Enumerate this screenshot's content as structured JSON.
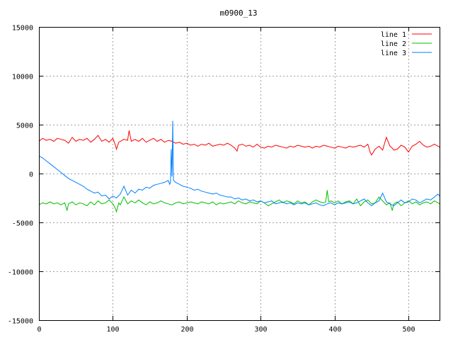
{
  "chart_data": {
    "type": "line",
    "title": "m0900_13",
    "xlabel": "",
    "ylabel": "",
    "xlim": [
      0,
      542
    ],
    "ylim": [
      -15000,
      15000
    ],
    "x_ticks": [
      0,
      100,
      200,
      300,
      400,
      500
    ],
    "y_ticks": [
      -15000,
      -10000,
      -5000,
      0,
      5000,
      10000,
      15000
    ],
    "grid": true,
    "legend_position": "top-right",
    "series": [
      {
        "name": "line 1",
        "color": "#ff0000",
        "x": [
          0,
          5,
          10,
          15,
          20,
          25,
          30,
          35,
          40,
          45,
          50,
          55,
          60,
          65,
          70,
          75,
          80,
          85,
          90,
          95,
          100,
          103,
          105,
          108,
          110,
          115,
          120,
          122,
          125,
          130,
          135,
          140,
          145,
          150,
          155,
          160,
          165,
          170,
          175,
          180,
          185,
          190,
          195,
          200,
          205,
          210,
          215,
          220,
          225,
          230,
          235,
          240,
          245,
          250,
          255,
          260,
          265,
          268,
          270,
          275,
          280,
          285,
          290,
          295,
          300,
          305,
          310,
          315,
          320,
          325,
          330,
          335,
          340,
          345,
          350,
          355,
          360,
          365,
          370,
          375,
          380,
          385,
          390,
          395,
          400,
          405,
          410,
          415,
          420,
          425,
          430,
          435,
          440,
          445,
          448,
          450,
          455,
          460,
          465,
          470,
          475,
          478,
          480,
          485,
          490,
          495,
          500,
          505,
          510,
          515,
          520,
          525,
          530,
          535,
          540,
          542
        ],
        "y": [
          3300,
          3600,
          3400,
          3500,
          3300,
          3600,
          3500,
          3400,
          3100,
          3700,
          3300,
          3500,
          3400,
          3600,
          3200,
          3500,
          3900,
          3300,
          3500,
          3200,
          3600,
          3000,
          2500,
          3200,
          3300,
          3500,
          3400,
          4400,
          3300,
          3500,
          3300,
          3600,
          3200,
          3400,
          3600,
          3300,
          3500,
          3200,
          3400,
          3300,
          3100,
          3200,
          3000,
          3100,
          2900,
          3000,
          2800,
          3000,
          2900,
          3100,
          2800,
          2900,
          3000,
          2900,
          3100,
          2900,
          2600,
          2300,
          2900,
          3000,
          2800,
          2900,
          2700,
          3000,
          2700,
          2600,
          2800,
          2700,
          2900,
          2800,
          2700,
          2600,
          2800,
          2700,
          2900,
          2800,
          2700,
          2800,
          2600,
          2800,
          2700,
          2900,
          2800,
          2700,
          2600,
          2800,
          2700,
          2600,
          2800,
          2700,
          2800,
          2900,
          2700,
          3000,
          2200,
          1900,
          2500,
          2800,
          2400,
          3700,
          2800,
          2600,
          2400,
          2500,
          2900,
          2700,
          2200,
          2800,
          3000,
          3300,
          2900,
          2700,
          2800,
          3000,
          2800,
          2700
        ]
      },
      {
        "name": "line 2",
        "color": "#00c000",
        "x": [
          0,
          5,
          10,
          15,
          20,
          25,
          30,
          35,
          38,
          40,
          45,
          50,
          55,
          60,
          65,
          70,
          75,
          80,
          85,
          90,
          95,
          100,
          103,
          105,
          108,
          110,
          115,
          120,
          125,
          130,
          135,
          140,
          145,
          150,
          155,
          160,
          165,
          170,
          175,
          180,
          185,
          190,
          195,
          200,
          205,
          210,
          215,
          220,
          225,
          230,
          235,
          240,
          245,
          250,
          255,
          260,
          265,
          270,
          275,
          280,
          285,
          290,
          295,
          300,
          305,
          310,
          315,
          320,
          325,
          330,
          335,
          340,
          345,
          350,
          355,
          360,
          365,
          370,
          375,
          380,
          385,
          388,
          390,
          392,
          395,
          400,
          405,
          410,
          415,
          420,
          425,
          430,
          435,
          440,
          445,
          450,
          455,
          460,
          465,
          470,
          475,
          478,
          480,
          485,
          490,
          495,
          500,
          505,
          510,
          515,
          520,
          525,
          530,
          535,
          540,
          542
        ],
        "y": [
          -3200,
          -3000,
          -3100,
          -2900,
          -3100,
          -3000,
          -3200,
          -3000,
          -3800,
          -3100,
          -2900,
          -3200,
          -3000,
          -3100,
          -3300,
          -2900,
          -3200,
          -2800,
          -3100,
          -3000,
          -2700,
          -3100,
          -3500,
          -3900,
          -3000,
          -3200,
          -2400,
          -3100,
          -2800,
          -3000,
          -2700,
          -3000,
          -3200,
          -2900,
          -3100,
          -3000,
          -2800,
          -3000,
          -3100,
          -3200,
          -3000,
          -2900,
          -3100,
          -3000,
          -2900,
          -3000,
          -3100,
          -2900,
          -3000,
          -3100,
          -2900,
          -3200,
          -3000,
          -3100,
          -3000,
          -2900,
          -3100,
          -2800,
          -3000,
          -3100,
          -2900,
          -3000,
          -3100,
          -2800,
          -3000,
          -3300,
          -3100,
          -2900,
          -2700,
          -3000,
          -2800,
          -2900,
          -3100,
          -2800,
          -3000,
          -2900,
          -3200,
          -2900,
          -2700,
          -2900,
          -3000,
          -2900,
          -1700,
          -2900,
          -2800,
          -3000,
          -2800,
          -3100,
          -2900,
          -2800,
          -3100,
          -2600,
          -3300,
          -2900,
          -2700,
          -3100,
          -3000,
          -2400,
          -2800,
          -3200,
          -3000,
          -3800,
          -3100,
          -2900,
          -3300,
          -3000,
          -2800,
          -3100,
          -2900,
          -3200,
          -3000,
          -2900,
          -3100,
          -2800,
          -3000,
          -3100
        ]
      },
      {
        "name": "line 3",
        "color": "#0080ff",
        "x": [
          0,
          5,
          10,
          15,
          20,
          25,
          30,
          35,
          40,
          45,
          50,
          55,
          60,
          65,
          70,
          75,
          80,
          85,
          90,
          95,
          100,
          105,
          110,
          115,
          120,
          125,
          130,
          135,
          140,
          145,
          150,
          155,
          160,
          165,
          170,
          175,
          177,
          178,
          179,
          180,
          181,
          182,
          185,
          190,
          195,
          200,
          205,
          210,
          215,
          220,
          225,
          230,
          235,
          240,
          245,
          250,
          255,
          260,
          265,
          270,
          275,
          280,
          285,
          290,
          295,
          300,
          305,
          310,
          315,
          320,
          325,
          330,
          335,
          340,
          345,
          350,
          355,
          360,
          365,
          370,
          375,
          380,
          385,
          390,
          395,
          400,
          405,
          410,
          415,
          420,
          425,
          430,
          435,
          440,
          445,
          450,
          455,
          460,
          465,
          470,
          475,
          480,
          485,
          490,
          495,
          500,
          505,
          510,
          515,
          520,
          525,
          530,
          535,
          540,
          542
        ],
        "y": [
          1800,
          1600,
          1300,
          1000,
          700,
          400,
          100,
          -200,
          -500,
          -700,
          -900,
          -1100,
          -1300,
          -1600,
          -1800,
          -2000,
          -1900,
          -2300,
          -2200,
          -2600,
          -2300,
          -2500,
          -2100,
          -1300,
          -2200,
          -1700,
          -2000,
          -1600,
          -1700,
          -1400,
          -1500,
          -1200,
          -1100,
          -1000,
          -900,
          -700,
          -1100,
          -900,
          2500,
          -300,
          5400,
          -700,
          -900,
          -1100,
          -1300,
          -1400,
          -1500,
          -1700,
          -1600,
          -1800,
          -1900,
          -2000,
          -2100,
          -2000,
          -2200,
          -2300,
          -2400,
          -2400,
          -2600,
          -2500,
          -2700,
          -2600,
          -2800,
          -2700,
          -2900,
          -2800,
          -3000,
          -2900,
          -2800,
          -3100,
          -3000,
          -2900,
          -3100,
          -3000,
          -3200,
          -3000,
          -3100,
          -3000,
          -3200,
          -3100,
          -3000,
          -3200,
          -3300,
          -3100,
          -3000,
          -3200,
          -3000,
          -3100,
          -3000,
          -2900,
          -3100,
          -3000,
          -2800,
          -2600,
          -3000,
          -3300,
          -3000,
          -2800,
          -2000,
          -2900,
          -3100,
          -3300,
          -3000,
          -2700,
          -3000,
          -2900,
          -2600,
          -2700,
          -3000,
          -2800,
          -2600,
          -2700,
          -2400,
          -2100,
          -2300
        ]
      }
    ]
  }
}
